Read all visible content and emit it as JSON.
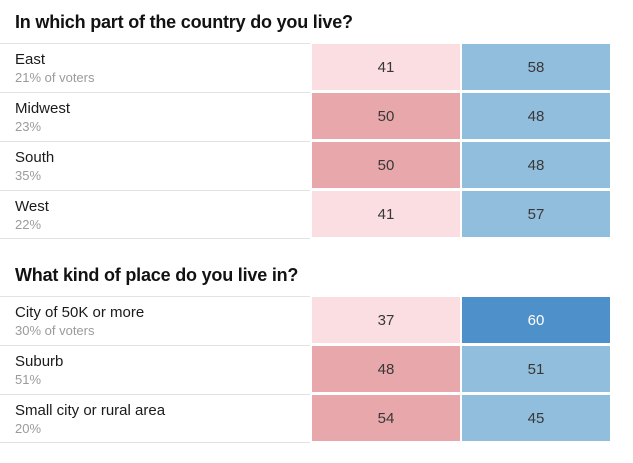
{
  "colors": {
    "pink_light": "#fbdee1",
    "pink_medium": "#e8a7ab",
    "blue_light": "#92bede",
    "blue_dark": "#4e90ca",
    "value_text_dark": "#383838",
    "value_text_on_dark": "#ffffff",
    "label_text": "#1a1a1a",
    "sublabel_text": "#9b9b9b",
    "title_text": "#121212",
    "divider": "#e2e2e2"
  },
  "chart_data": [
    {
      "type": "table",
      "title": "In which part of the country do you live?",
      "legend_position": "none",
      "rows": [
        {
          "label": "East",
          "sublabel": "21% of voters",
          "values": [
            41,
            58
          ],
          "shades": [
            "pink_light",
            "blue_light"
          ]
        },
        {
          "label": "Midwest",
          "sublabel": "23%",
          "values": [
            50,
            48
          ],
          "shades": [
            "pink_medium",
            "blue_light"
          ]
        },
        {
          "label": "South",
          "sublabel": "35%",
          "values": [
            50,
            48
          ],
          "shades": [
            "pink_medium",
            "blue_light"
          ]
        },
        {
          "label": "West",
          "sublabel": "22%",
          "values": [
            41,
            57
          ],
          "shades": [
            "pink_light",
            "blue_light"
          ]
        }
      ]
    },
    {
      "type": "table",
      "title": "What kind of place do you live in?",
      "legend_position": "none",
      "rows": [
        {
          "label": "City of 50K or more",
          "sublabel": "30% of voters",
          "values": [
            37,
            60
          ],
          "shades": [
            "pink_light",
            "blue_dark"
          ]
        },
        {
          "label": "Suburb",
          "sublabel": "51%",
          "values": [
            48,
            51
          ],
          "shades": [
            "pink_medium",
            "blue_light"
          ]
        },
        {
          "label": "Small city or rural area",
          "sublabel": "20%",
          "values": [
            54,
            45
          ],
          "shades": [
            "pink_medium",
            "blue_light"
          ]
        }
      ]
    }
  ]
}
